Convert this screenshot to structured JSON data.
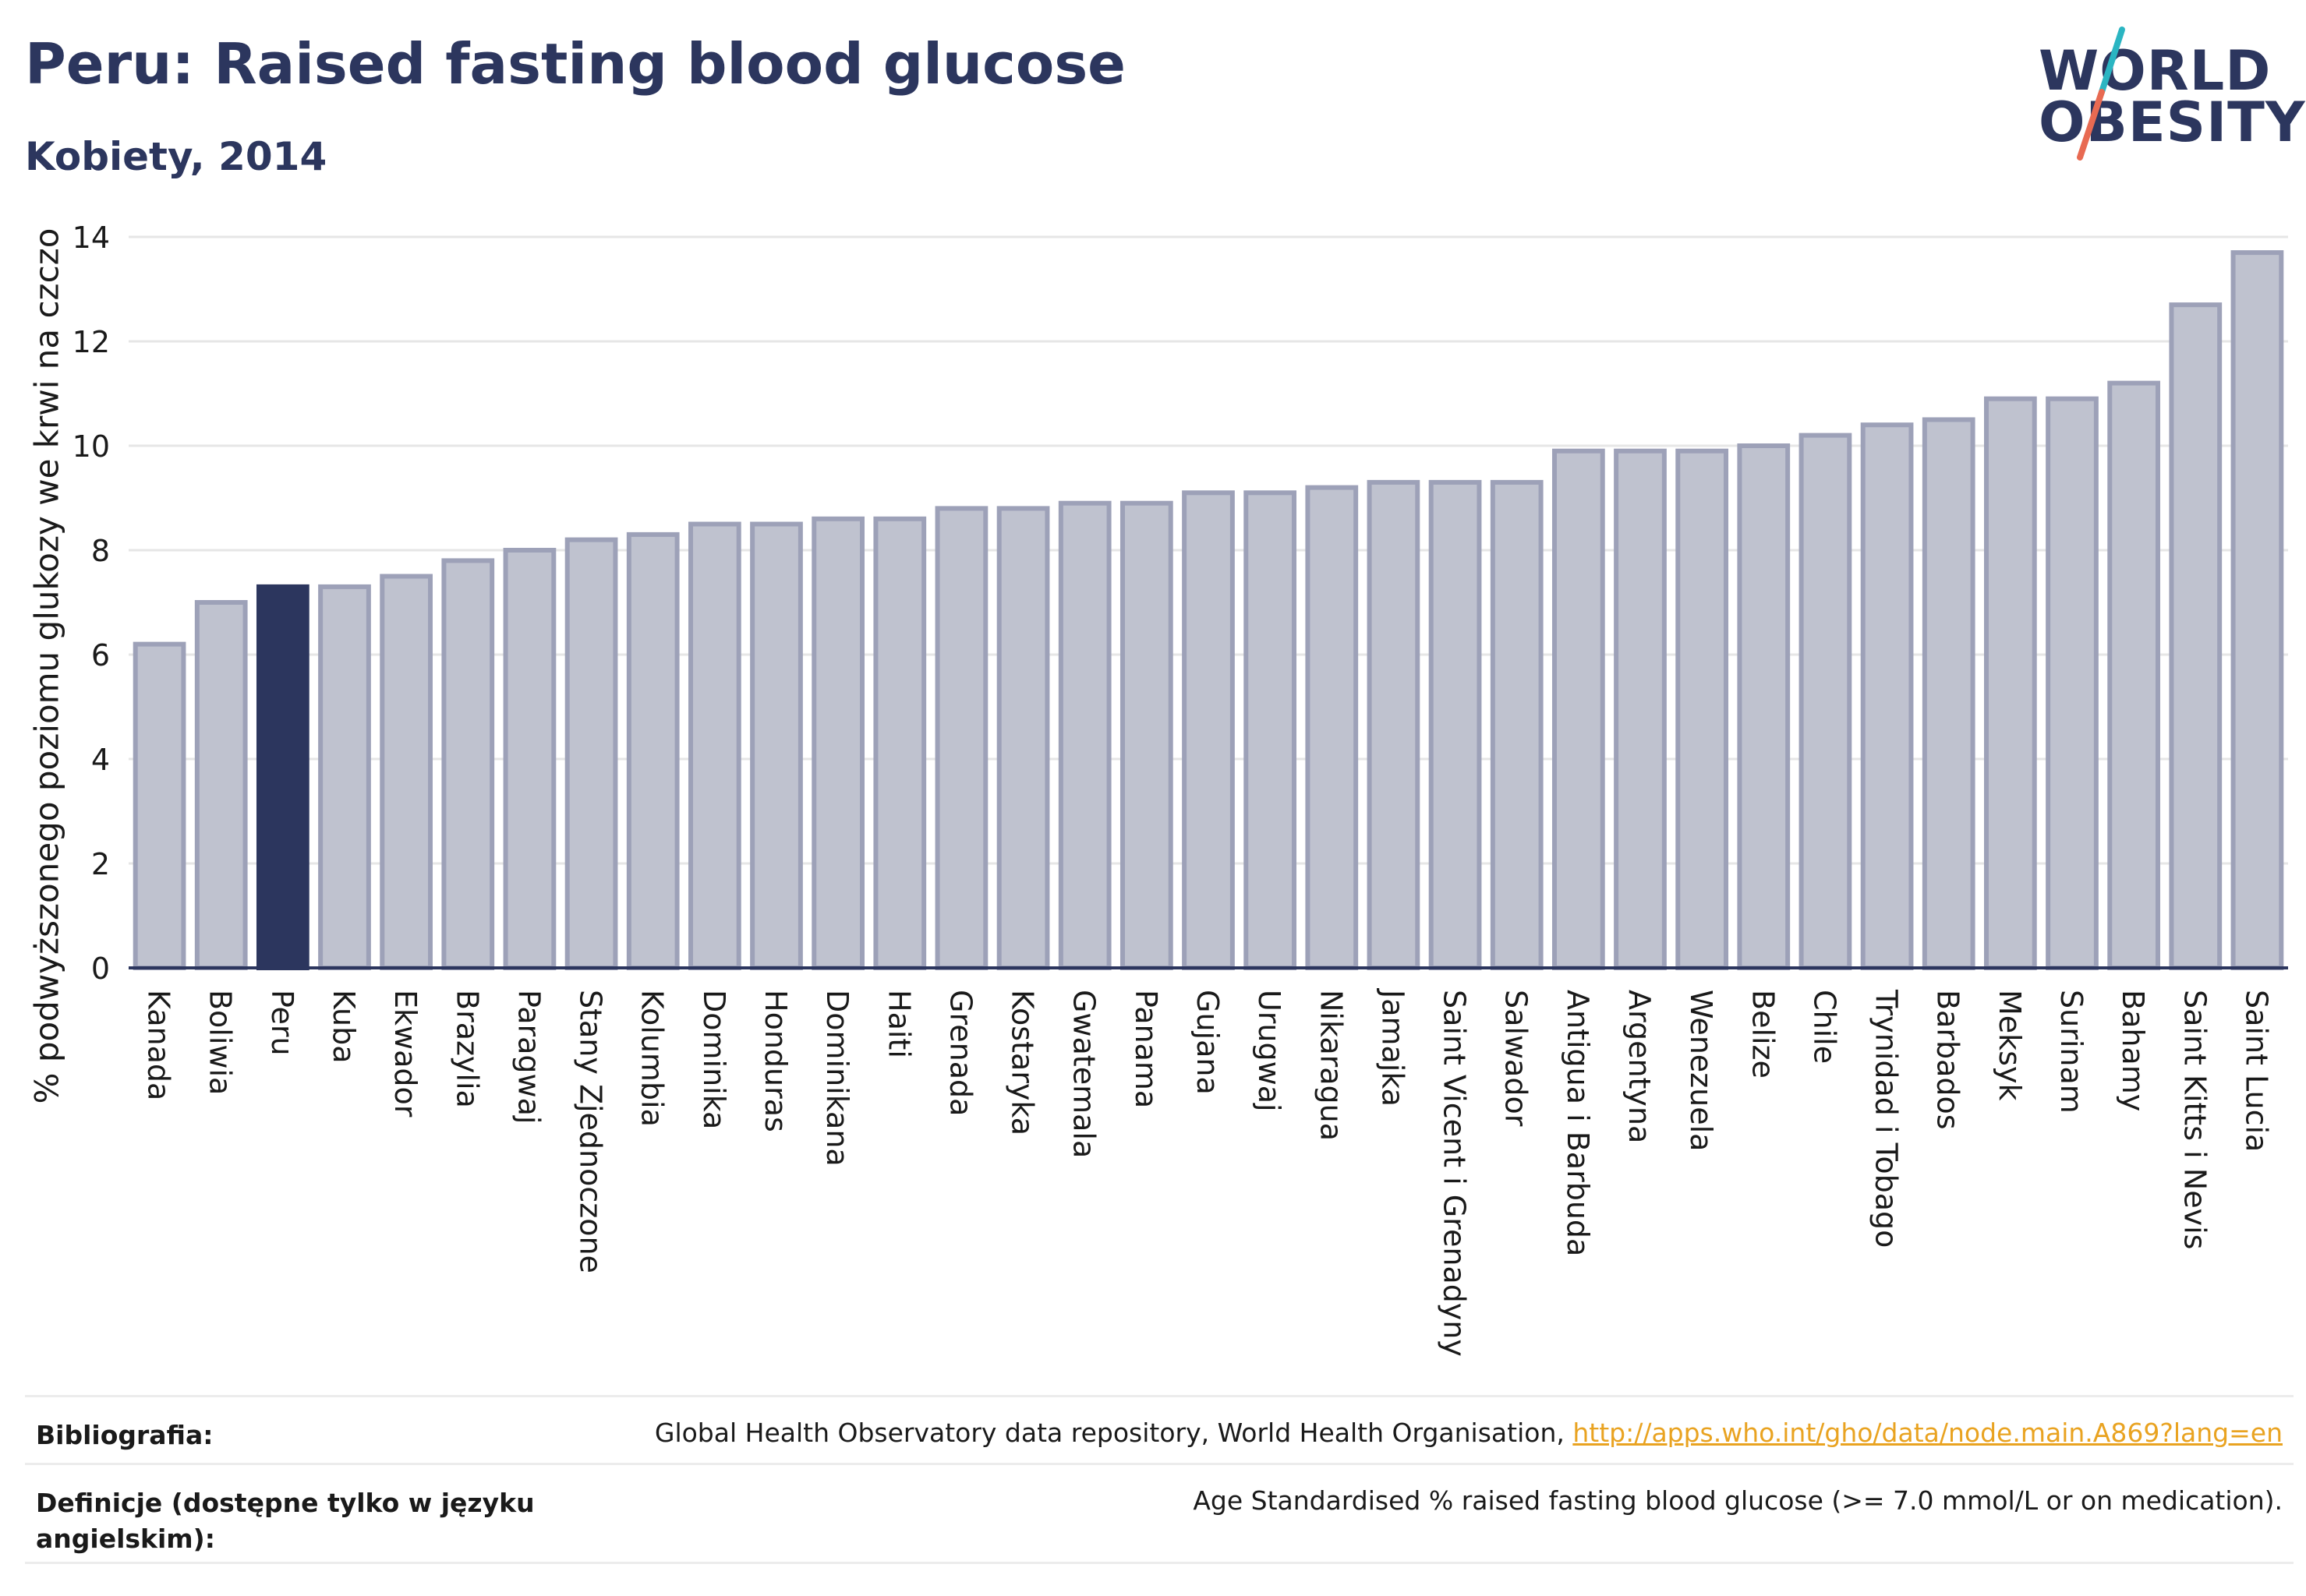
{
  "header": {
    "title": "Peru: Raised fasting blood glucose",
    "subtitle": "Kobiety, 2014"
  },
  "logo": {
    "line1": "WORLD",
    "line2": "OBESITY",
    "colors": {
      "text": "#2c365e",
      "slash_top": "#2bb5c2",
      "slash_bottom": "#e86a52"
    }
  },
  "colors": {
    "bar": "#bfc2cf",
    "bar_border": "#9da1b8",
    "highlight": "#2c365e",
    "grid": "#e6e6e6",
    "axis": "#2c365e",
    "link": "#e9a321"
  },
  "chart_data": {
    "type": "bar",
    "ylabel": "% podwyższonego poziomu glukozy we krwi na czczo",
    "ylim": [
      0,
      14
    ],
    "yticks": [
      0,
      2,
      4,
      6,
      8,
      10,
      12,
      14
    ],
    "grid": true,
    "highlight": "Peru",
    "categories": [
      "Kanada",
      "Boliwia",
      "Peru",
      "Kuba",
      "Ekwador",
      "Brazylia",
      "Paragwaj",
      "Stany Zjednoczone",
      "Kolumbia",
      "Dominika",
      "Honduras",
      "Dominikana",
      "Haiti",
      "Grenada",
      "Kostaryka",
      "Gwatemala",
      "Panama",
      "Gujana",
      "Urugwaj",
      "Nikaragua",
      "Jamajka",
      "Saint Vicent i Grenadyny",
      "Salwador",
      "Antigua i Barbuda",
      "Argentyna",
      "Wenezuela",
      "Belize",
      "Chile",
      "Trynidad i Tobago",
      "Barbados",
      "Meksyk",
      "Surinam",
      "Bahamy",
      "Saint Kitts i Nevis",
      "Saint Lucia"
    ],
    "values": [
      6.2,
      7.0,
      7.3,
      7.3,
      7.5,
      7.8,
      8.0,
      8.2,
      8.3,
      8.5,
      8.5,
      8.6,
      8.6,
      8.8,
      8.8,
      8.9,
      8.9,
      9.1,
      9.1,
      9.2,
      9.3,
      9.3,
      9.3,
      9.9,
      9.9,
      9.9,
      10.0,
      10.2,
      10.4,
      10.5,
      10.9,
      10.9,
      11.2,
      12.7,
      13.7
    ]
  },
  "footer": {
    "bibliography_label": "Bibliografia:",
    "bibliography_text": "Global Health Observatory data repository, World Health Organisation, ",
    "bibliography_link": "http://apps.who.int/gho/data/node.main.A869?lang=en",
    "definitions_label": "Definicje (dostępne tylko w języku angielskim):",
    "definitions_text": "Age Standardised % raised fasting blood glucose (>= 7.0 mmol/L or on medication)."
  }
}
